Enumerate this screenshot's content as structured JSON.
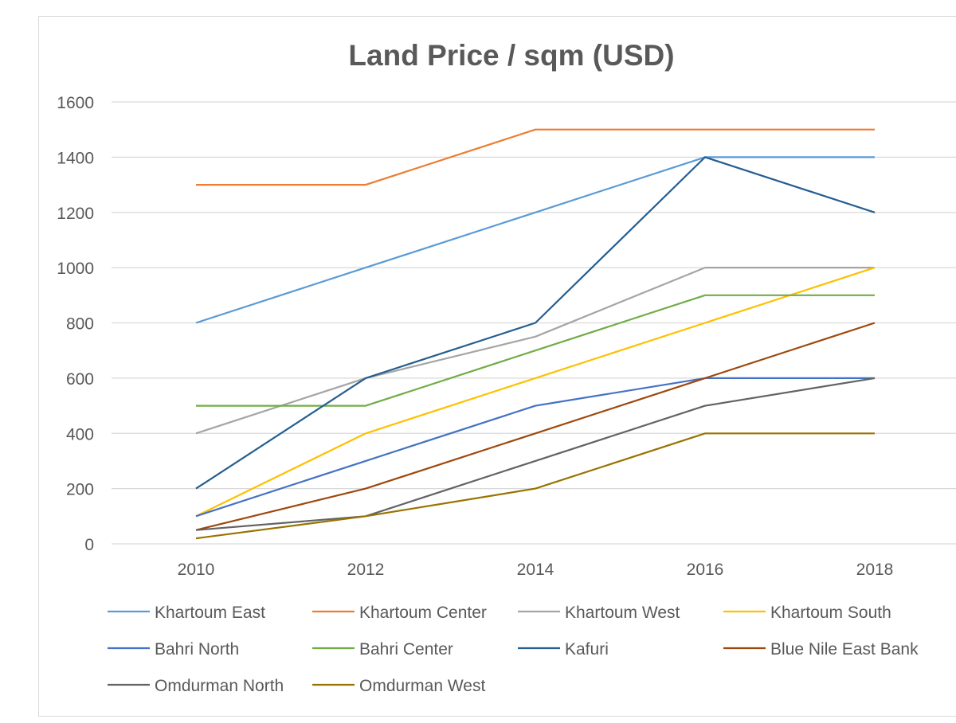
{
  "chart_data": {
    "type": "line",
    "title": "Land Price / sqm (USD)",
    "xlabel": "",
    "ylabel": "",
    "x": [
      "2010",
      "2012",
      "2014",
      "2016",
      "2018"
    ],
    "ylim": [
      0,
      1600
    ],
    "yticks": [
      0,
      200,
      400,
      600,
      800,
      1000,
      1200,
      1400,
      1600
    ],
    "grid": true,
    "legend_position": "bottom",
    "series": [
      {
        "name": "Khartoum East",
        "color": "#5b9bd5",
        "values": [
          800,
          1000,
          1200,
          1400,
          1400
        ]
      },
      {
        "name": "Khartoum Center",
        "color": "#ed7d31",
        "values": [
          1300,
          1300,
          1500,
          1500,
          1500
        ]
      },
      {
        "name": "Khartoum West",
        "color": "#a5a5a5",
        "values": [
          400,
          600,
          750,
          1000,
          1000
        ]
      },
      {
        "name": "Khartoum South",
        "color": "#ffc000",
        "values": [
          100,
          400,
          600,
          800,
          1000
        ]
      },
      {
        "name": "Bahri North",
        "color": "#4472c4",
        "values": [
          100,
          300,
          500,
          600,
          600
        ]
      },
      {
        "name": "Bahri Center",
        "color": "#70ad47",
        "values": [
          500,
          500,
          700,
          900,
          900
        ]
      },
      {
        "name": "Kafuri",
        "color": "#255e91",
        "values": [
          200,
          600,
          800,
          1400,
          1200
        ]
      },
      {
        "name": "Blue Nile East Bank",
        "color": "#9e480e",
        "values": [
          50,
          200,
          400,
          600,
          800
        ]
      },
      {
        "name": "Omdurman North",
        "color": "#636363",
        "values": [
          50,
          100,
          300,
          500,
          600
        ]
      },
      {
        "name": "Omdurman West",
        "color": "#997300",
        "values": [
          20,
          100,
          200,
          400,
          400
        ]
      }
    ]
  }
}
